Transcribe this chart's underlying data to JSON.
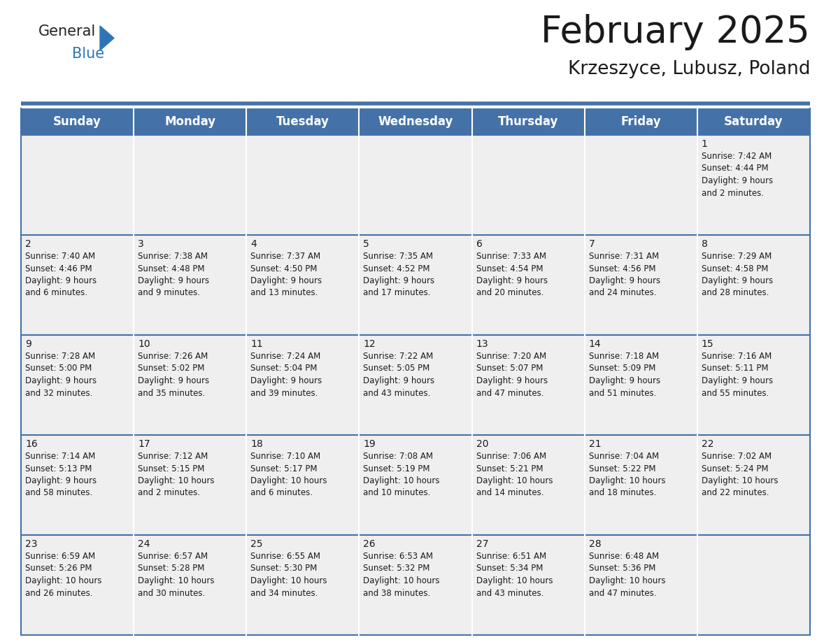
{
  "title": "February 2025",
  "subtitle": "Krzeszyce, Lubusz, Poland",
  "header_color": "#4472a8",
  "header_text_color": "#ffffff",
  "background_color": "#ffffff",
  "cell_bg": "#efefef",
  "border_color": "#4472a8",
  "text_color": "#1a1a1a",
  "day_headers": [
    "Sunday",
    "Monday",
    "Tuesday",
    "Wednesday",
    "Thursday",
    "Friday",
    "Saturday"
  ],
  "title_fontsize": 38,
  "subtitle_fontsize": 19,
  "header_fontsize": 12,
  "cell_fontsize": 8.5,
  "day_num_fontsize": 10,
  "weeks": [
    [
      {
        "day": "",
        "info": ""
      },
      {
        "day": "",
        "info": ""
      },
      {
        "day": "",
        "info": ""
      },
      {
        "day": "",
        "info": ""
      },
      {
        "day": "",
        "info": ""
      },
      {
        "day": "",
        "info": ""
      },
      {
        "day": "1",
        "info": "Sunrise: 7:42 AM\nSunset: 4:44 PM\nDaylight: 9 hours\nand 2 minutes."
      }
    ],
    [
      {
        "day": "2",
        "info": "Sunrise: 7:40 AM\nSunset: 4:46 PM\nDaylight: 9 hours\nand 6 minutes."
      },
      {
        "day": "3",
        "info": "Sunrise: 7:38 AM\nSunset: 4:48 PM\nDaylight: 9 hours\nand 9 minutes."
      },
      {
        "day": "4",
        "info": "Sunrise: 7:37 AM\nSunset: 4:50 PM\nDaylight: 9 hours\nand 13 minutes."
      },
      {
        "day": "5",
        "info": "Sunrise: 7:35 AM\nSunset: 4:52 PM\nDaylight: 9 hours\nand 17 minutes."
      },
      {
        "day": "6",
        "info": "Sunrise: 7:33 AM\nSunset: 4:54 PM\nDaylight: 9 hours\nand 20 minutes."
      },
      {
        "day": "7",
        "info": "Sunrise: 7:31 AM\nSunset: 4:56 PM\nDaylight: 9 hours\nand 24 minutes."
      },
      {
        "day": "8",
        "info": "Sunrise: 7:29 AM\nSunset: 4:58 PM\nDaylight: 9 hours\nand 28 minutes."
      }
    ],
    [
      {
        "day": "9",
        "info": "Sunrise: 7:28 AM\nSunset: 5:00 PM\nDaylight: 9 hours\nand 32 minutes."
      },
      {
        "day": "10",
        "info": "Sunrise: 7:26 AM\nSunset: 5:02 PM\nDaylight: 9 hours\nand 35 minutes."
      },
      {
        "day": "11",
        "info": "Sunrise: 7:24 AM\nSunset: 5:04 PM\nDaylight: 9 hours\nand 39 minutes."
      },
      {
        "day": "12",
        "info": "Sunrise: 7:22 AM\nSunset: 5:05 PM\nDaylight: 9 hours\nand 43 minutes."
      },
      {
        "day": "13",
        "info": "Sunrise: 7:20 AM\nSunset: 5:07 PM\nDaylight: 9 hours\nand 47 minutes."
      },
      {
        "day": "14",
        "info": "Sunrise: 7:18 AM\nSunset: 5:09 PM\nDaylight: 9 hours\nand 51 minutes."
      },
      {
        "day": "15",
        "info": "Sunrise: 7:16 AM\nSunset: 5:11 PM\nDaylight: 9 hours\nand 55 minutes."
      }
    ],
    [
      {
        "day": "16",
        "info": "Sunrise: 7:14 AM\nSunset: 5:13 PM\nDaylight: 9 hours\nand 58 minutes."
      },
      {
        "day": "17",
        "info": "Sunrise: 7:12 AM\nSunset: 5:15 PM\nDaylight: 10 hours\nand 2 minutes."
      },
      {
        "day": "18",
        "info": "Sunrise: 7:10 AM\nSunset: 5:17 PM\nDaylight: 10 hours\nand 6 minutes."
      },
      {
        "day": "19",
        "info": "Sunrise: 7:08 AM\nSunset: 5:19 PM\nDaylight: 10 hours\nand 10 minutes."
      },
      {
        "day": "20",
        "info": "Sunrise: 7:06 AM\nSunset: 5:21 PM\nDaylight: 10 hours\nand 14 minutes."
      },
      {
        "day": "21",
        "info": "Sunrise: 7:04 AM\nSunset: 5:22 PM\nDaylight: 10 hours\nand 18 minutes."
      },
      {
        "day": "22",
        "info": "Sunrise: 7:02 AM\nSunset: 5:24 PM\nDaylight: 10 hours\nand 22 minutes."
      }
    ],
    [
      {
        "day": "23",
        "info": "Sunrise: 6:59 AM\nSunset: 5:26 PM\nDaylight: 10 hours\nand 26 minutes."
      },
      {
        "day": "24",
        "info": "Sunrise: 6:57 AM\nSunset: 5:28 PM\nDaylight: 10 hours\nand 30 minutes."
      },
      {
        "day": "25",
        "info": "Sunrise: 6:55 AM\nSunset: 5:30 PM\nDaylight: 10 hours\nand 34 minutes."
      },
      {
        "day": "26",
        "info": "Sunrise: 6:53 AM\nSunset: 5:32 PM\nDaylight: 10 hours\nand 38 minutes."
      },
      {
        "day": "27",
        "info": "Sunrise: 6:51 AM\nSunset: 5:34 PM\nDaylight: 10 hours\nand 43 minutes."
      },
      {
        "day": "28",
        "info": "Sunrise: 6:48 AM\nSunset: 5:36 PM\nDaylight: 10 hours\nand 47 minutes."
      },
      {
        "day": "",
        "info": ""
      }
    ]
  ]
}
